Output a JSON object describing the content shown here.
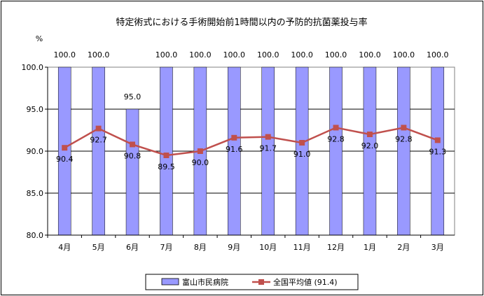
{
  "chart_data": {
    "type": "bar",
    "title": "特定術式における手術開始前1時間以内の予防的抗菌薬投与率",
    "ylabel": "%",
    "xlabel": "",
    "categories": [
      "4月",
      "5月",
      "6月",
      "7月",
      "8月",
      "9月",
      "10月",
      "11月",
      "12月",
      "1月",
      "2月",
      "3月"
    ],
    "ylim": [
      80,
      100
    ],
    "yticks": [
      "100.0",
      "95.0",
      "90.0",
      "85.0",
      "80.0"
    ],
    "grid": true,
    "legend_position": "bottom",
    "series": [
      {
        "name": "富山市民病院",
        "type": "bar",
        "color": "#9999ff",
        "values": [
          100.0,
          100.0,
          95.0,
          100.0,
          100.0,
          100.0,
          100.0,
          100.0,
          100.0,
          100.0,
          100.0,
          100.0
        ],
        "labels": [
          "100.0",
          "100.0",
          "95.0",
          "100.0",
          "100.0",
          "100.0",
          "100.0",
          "100.0",
          "100.0",
          "100.0",
          "100.0",
          "100.0"
        ]
      },
      {
        "name": "全国平均値 (91.4)",
        "type": "line",
        "color": "#c0504d",
        "values": [
          90.4,
          92.7,
          90.8,
          89.5,
          90.0,
          91.6,
          91.7,
          91.0,
          92.8,
          92.0,
          92.8,
          91.3
        ],
        "labels": [
          "90.4",
          "92.7",
          "90.8",
          "89.5",
          "90.0",
          "91.6",
          "91.7",
          "91.0",
          "92.8",
          "92.0",
          "92.8",
          "91.3"
        ]
      }
    ]
  }
}
